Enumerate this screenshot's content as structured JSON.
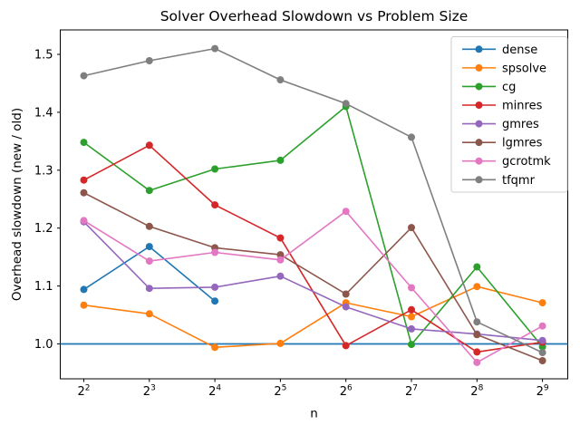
{
  "chart_data": {
    "type": "line",
    "title": "Solver Overhead Slowdown vs Problem Size",
    "xlabel": "n",
    "ylabel": "Overhead slowdown (new / old)",
    "x_scale": "log2",
    "x_tick_base": "2",
    "x_tick_exponents": [
      "2",
      "3",
      "4",
      "5",
      "6",
      "7",
      "8",
      "9"
    ],
    "x_values": [
      4,
      8,
      16,
      32,
      64,
      128,
      256,
      512
    ],
    "y_ticks": [
      1.0,
      1.1,
      1.2,
      1.3,
      1.4,
      1.5
    ],
    "y_tick_labels": [
      "1.0",
      "1.1",
      "1.2",
      "1.3",
      "1.4",
      "1.5"
    ],
    "ylim": [
      0.94,
      1.542
    ],
    "grid": false,
    "legend_position": "upper right",
    "reference_line": {
      "y": 1.0,
      "color": "#1f77b4"
    },
    "series": [
      {
        "name": "dense",
        "color": "#1f77b4",
        "values": [
          1.094,
          1.168,
          1.074,
          null,
          null,
          null,
          null,
          null
        ]
      },
      {
        "name": "spsolve",
        "color": "#ff7f0e",
        "values": [
          1.067,
          1.052,
          0.994,
          1.001,
          1.071,
          1.047,
          1.099,
          1.071
        ]
      },
      {
        "name": "cg",
        "color": "#2ca02c",
        "values": [
          1.348,
          1.265,
          1.302,
          1.317,
          1.41,
          0.999,
          1.133,
          0.995
        ]
      },
      {
        "name": "minres",
        "color": "#d62728",
        "values": [
          1.283,
          1.343,
          1.24,
          1.183,
          0.997,
          1.059,
          0.986,
          1.003
        ]
      },
      {
        "name": "gmres",
        "color": "#9467bd",
        "values": [
          1.211,
          1.096,
          1.098,
          1.117,
          1.064,
          1.026,
          1.017,
          1.006
        ]
      },
      {
        "name": "lgmres",
        "color": "#8c564b",
        "values": [
          1.261,
          1.203,
          1.166,
          1.154,
          1.086,
          1.201,
          1.016,
          0.971
        ]
      },
      {
        "name": "gcrotmk",
        "color": "#e377c2",
        "values": [
          1.213,
          1.143,
          1.158,
          1.145,
          1.229,
          1.097,
          0.968,
          1.031
        ]
      },
      {
        "name": "tfqmr",
        "color": "#7f7f7f",
        "values": [
          1.463,
          1.489,
          1.51,
          1.456,
          1.415,
          1.357,
          1.038,
          0.985
        ]
      }
    ]
  }
}
